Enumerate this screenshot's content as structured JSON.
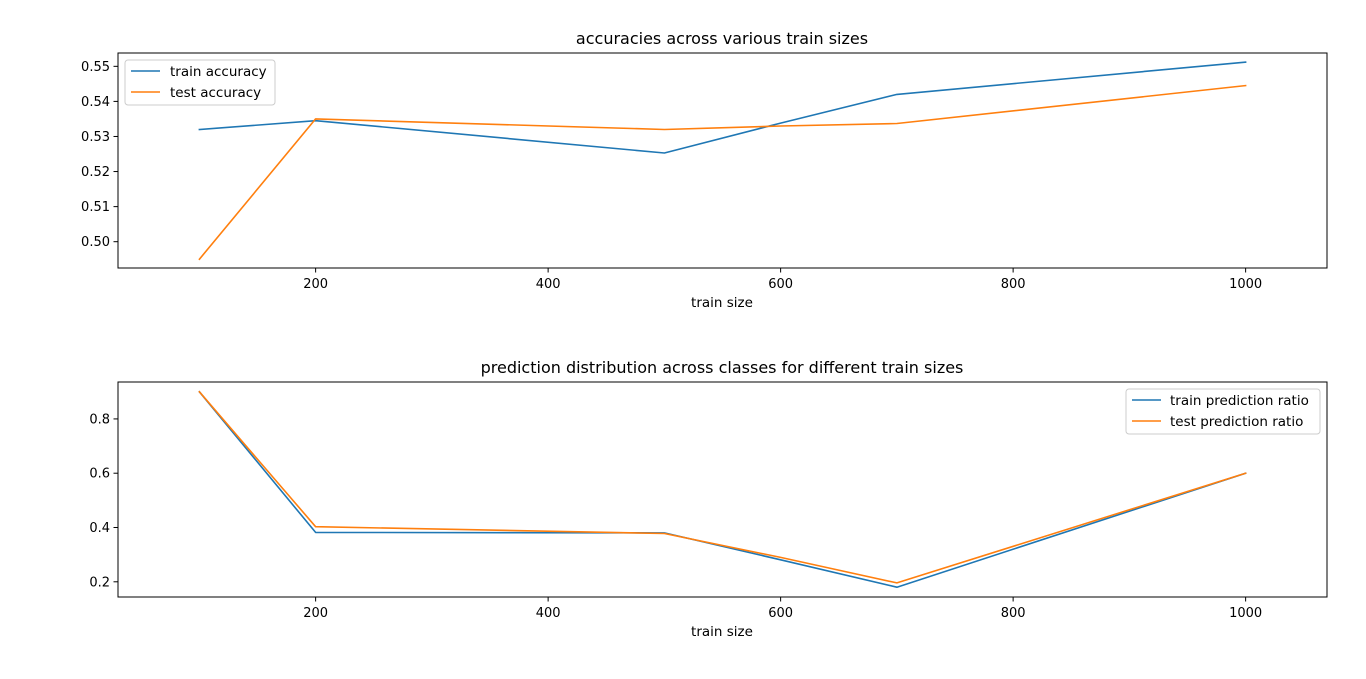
{
  "chart_data": [
    {
      "type": "line",
      "title": "accuracies across various train sizes",
      "xlabel": "train size",
      "ylabel": "",
      "x": [
        100,
        200,
        500,
        600,
        700,
        1000
      ],
      "series": [
        {
          "name": "train accuracy",
          "color": "#1f77b4",
          "values": [
            0.532,
            0.5345,
            0.5253,
            0.5338,
            0.542,
            0.5512
          ]
        },
        {
          "name": "test accuracy",
          "color": "#ff7f0e",
          "values": [
            0.495,
            0.535,
            0.532,
            0.533,
            0.5337,
            0.5445
          ]
        }
      ],
      "xlim": [
        30,
        1070
      ],
      "ylim": [
        0.4925,
        0.5538
      ],
      "xticks": [
        200,
        400,
        600,
        800,
        1000
      ],
      "xtick_labels": [
        "200",
        "400",
        "600",
        "800",
        "1000"
      ],
      "yticks": [
        0.5,
        0.51,
        0.52,
        0.53,
        0.54,
        0.55
      ],
      "ytick_labels": [
        "0.50",
        "0.51",
        "0.52",
        "0.53",
        "0.54",
        "0.55"
      ],
      "legend_position": "top-left",
      "grid": false
    },
    {
      "type": "line",
      "title": "prediction distribution across classes for different train sizes",
      "xlabel": "train size",
      "ylabel": "",
      "x": [
        100,
        200,
        500,
        600,
        700,
        1000
      ],
      "series": [
        {
          "name": "train prediction ratio",
          "color": "#1f77b4",
          "values": [
            0.9,
            0.382,
            0.38,
            0.281,
            0.18,
            0.6
          ]
        },
        {
          "name": "test prediction ratio",
          "color": "#ff7f0e",
          "values": [
            0.9,
            0.403,
            0.378,
            0.29,
            0.196,
            0.6
          ]
        }
      ],
      "xlim": [
        30,
        1070
      ],
      "ylim": [
        0.144,
        0.936
      ],
      "xticks": [
        200,
        400,
        600,
        800,
        1000
      ],
      "xtick_labels": [
        "200",
        "400",
        "600",
        "800",
        "1000"
      ],
      "yticks": [
        0.2,
        0.4,
        0.6,
        0.8
      ],
      "ytick_labels": [
        "0.2",
        "0.4",
        "0.6",
        "0.8"
      ],
      "legend_position": "top-right",
      "grid": false
    }
  ]
}
